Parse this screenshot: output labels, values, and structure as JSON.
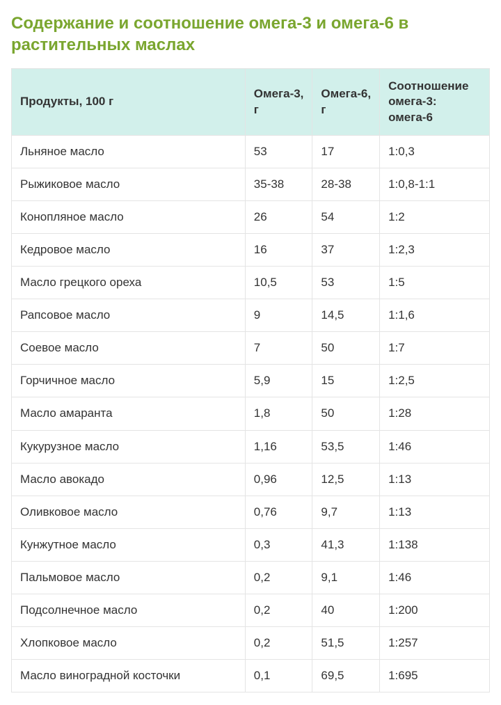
{
  "title": "Содержание и соотношение омега-3 и омега-6 в растительных маслах",
  "table": {
    "columns": [
      "Продукты, 100 г",
      "Омега-3, г",
      "Омега-6, г",
      "Соотношение омега-3: омега-6"
    ],
    "rows": [
      [
        "Льняное масло",
        "53",
        "17",
        "1:0,3"
      ],
      [
        "Рыжиковое масло",
        "35-38",
        "28-38",
        "1:0,8-1:1"
      ],
      [
        "Конопляное масло",
        "26",
        "54",
        "1:2"
      ],
      [
        "Кедровое масло",
        "16",
        "37",
        "1:2,3"
      ],
      [
        "Масло грецкого ореха",
        "10,5",
        "53",
        "1:5"
      ],
      [
        "Рапсовое масло",
        "9",
        "14,5",
        "1:1,6"
      ],
      [
        "Соевое масло",
        "7",
        "50",
        "1:7"
      ],
      [
        "Горчичное масло",
        "5,9",
        "15",
        "1:2,5"
      ],
      [
        "Масло амаранта",
        "1,8",
        "50",
        "1:28"
      ],
      [
        "Кукурузное масло",
        "1,16",
        "53,5",
        "1:46"
      ],
      [
        "Масло авокадо",
        "0,96",
        "12,5",
        "1:13"
      ],
      [
        "Оливковое масло",
        "0,76",
        "9,7",
        "1:13"
      ],
      [
        "Кунжутное масло",
        "0,3",
        "41,3",
        "1:138"
      ],
      [
        "Пальмовое масло",
        "0,2",
        "9,1",
        "1:46"
      ],
      [
        "Подсолнечное масло",
        "0,2",
        "40",
        "1:200"
      ],
      [
        "Хлопковое масло",
        "0,2",
        "51,5",
        "1:257"
      ],
      [
        "Масло виноградной косточки",
        "0,1",
        "69,5",
        "1:695"
      ]
    ],
    "header_bg": "#d2f0eb",
    "border_color": "#e4e4e4",
    "title_color": "#7aa62f",
    "text_color": "#333333",
    "font_size_body": 17,
    "font_size_title": 24,
    "col_widths_pct": [
      49,
      14,
      14,
      23
    ]
  }
}
